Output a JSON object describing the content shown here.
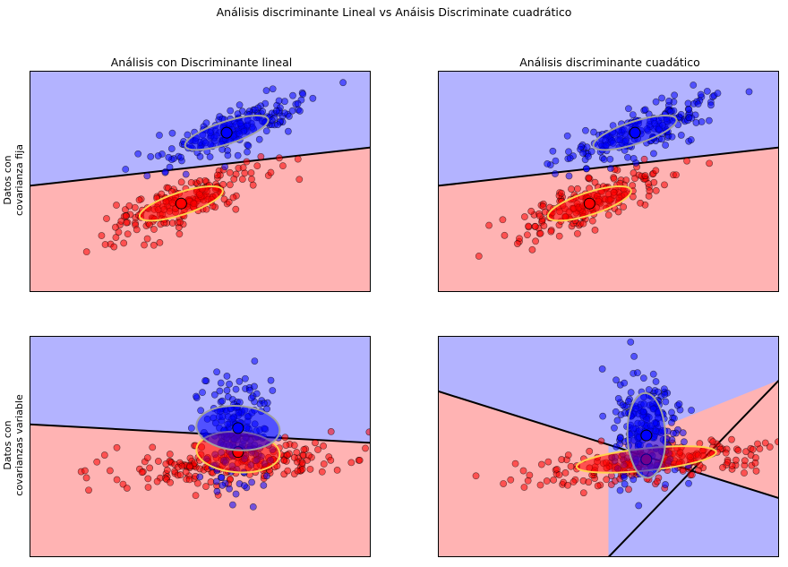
{
  "figure": {
    "suptitle": "Análisis discriminante Lineal vs Anáisis Discriminate cuadrático",
    "col_titles": [
      "Análisis con Discriminante lineal",
      "Análisis discriminante cuadático"
    ],
    "row_labels": [
      {
        "line1": "Datos con",
        "line2": "covarianza fija"
      },
      {
        "line1": "Datos con",
        "line2": "covarianzas variable"
      }
    ]
  },
  "chart_data": [
    {
      "type": "scatter",
      "title": "Análisis con Discriminante lineal",
      "row_label": "Datos con covarianza fija",
      "classifier": "LDA",
      "xlim": [
        -4,
        5
      ],
      "ylim": [
        -3,
        4.5
      ],
      "grid": false,
      "classes": [
        {
          "name": "0",
          "color": "#ff0000",
          "mean": [
            0,
            0
          ],
          "cov": [
            [
              1,
              0.45
            ],
            [
              0.45,
              0.35
            ]
          ],
          "n": 200
        },
        {
          "name": "1",
          "color": "#0000ff",
          "mean": [
            1.2,
            2.4
          ],
          "cov": [
            [
              1,
              0.45
            ],
            [
              0.45,
              0.35
            ]
          ],
          "n": 200
        }
      ],
      "boundary": {
        "kind": "line",
        "points": [
          [
            -4,
            0.6
          ],
          [
            5,
            1.9
          ]
        ]
      },
      "ellipses": [
        {
          "class": "0",
          "center": [
            0,
            0
          ],
          "rx": 1.15,
          "ry": 0.38,
          "angle_deg": 18,
          "fill": "#ff0000",
          "edge": "#ffd24d"
        },
        {
          "class": "1",
          "center": [
            1.2,
            2.4
          ],
          "rx": 1.15,
          "ry": 0.38,
          "angle_deg": 18,
          "fill": "#0000ff",
          "edge": "#a0a0a0"
        }
      ]
    },
    {
      "type": "scatter",
      "title": "Análisis discriminante cuadático",
      "row_label": "Datos con covarianza fija",
      "classifier": "QDA",
      "xlim": [
        -4,
        5
      ],
      "ylim": [
        -3,
        4.5
      ],
      "grid": false,
      "classes": [
        {
          "name": "0",
          "color": "#ff0000",
          "mean": [
            0,
            0
          ],
          "cov": [
            [
              1,
              0.45
            ],
            [
              0.45,
              0.35
            ]
          ],
          "n": 200
        },
        {
          "name": "1",
          "color": "#0000ff",
          "mean": [
            1.2,
            2.4
          ],
          "cov": [
            [
              1,
              0.45
            ],
            [
              0.45,
              0.35
            ]
          ],
          "n": 200
        }
      ],
      "boundary": {
        "kind": "line",
        "points": [
          [
            -4,
            0.6
          ],
          [
            5,
            1.9
          ]
        ]
      },
      "ellipses": [
        {
          "class": "0",
          "center": [
            0,
            0
          ],
          "rx": 1.15,
          "ry": 0.38,
          "angle_deg": 18,
          "fill": "#ff0000",
          "edge": "#ffd24d"
        },
        {
          "class": "1",
          "center": [
            1.2,
            2.4
          ],
          "rx": 1.15,
          "ry": 0.38,
          "angle_deg": 18,
          "fill": "#0000ff",
          "edge": "#a0a0a0"
        }
      ]
    },
    {
      "type": "scatter",
      "title": "",
      "row_label": "Datos con covarianzas variable",
      "classifier": "LDA",
      "xlim": [
        -5.5,
        3.5
      ],
      "ylim": [
        -2.5,
        3.5
      ],
      "grid": false,
      "classes": [
        {
          "name": "0",
          "color": "#ff0000",
          "mean": [
            0,
            0
          ],
          "cov": [
            [
              3.2,
              0.3
            ],
            [
              0.3,
              0.1
            ]
          ],
          "n": 200
        },
        {
          "name": "1",
          "color": "#0000ff",
          "mean": [
            0,
            1
          ],
          "cov": [
            [
              0.25,
              0
            ],
            [
              0,
              0.6
            ]
          ],
          "n": 200
        }
      ],
      "boundary": {
        "kind": "line",
        "points": [
          [
            -5.5,
            1.1
          ],
          [
            3.5,
            0.6
          ]
        ]
      },
      "ellipses": [
        {
          "class": "0",
          "center": [
            0,
            0.35
          ],
          "rx": 1.1,
          "ry": 0.55,
          "angle_deg": -4,
          "fill": "#ff0000",
          "edge": "#ffd24d"
        },
        {
          "class": "1",
          "center": [
            0,
            1.0
          ],
          "rx": 1.1,
          "ry": 0.6,
          "angle_deg": -4,
          "fill": "#0000ff",
          "edge": "#a0a0a0"
        }
      ]
    },
    {
      "type": "scatter",
      "title": "",
      "row_label": "Datos con covarianzas variable",
      "classifier": "QDA",
      "xlim": [
        -5.5,
        3.5
      ],
      "ylim": [
        -2.5,
        3.5
      ],
      "grid": false,
      "classes": [
        {
          "name": "0",
          "color": "#ff0000",
          "mean": [
            0,
            0
          ],
          "cov": [
            [
              3.2,
              0.3
            ],
            [
              0.3,
              0.1
            ]
          ],
          "n": 200
        },
        {
          "name": "1",
          "color": "#0000ff",
          "mean": [
            0,
            1
          ],
          "cov": [
            [
              0.25,
              0
            ],
            [
              0,
              0.6
            ]
          ],
          "n": 200
        }
      ],
      "boundary": {
        "kind": "x",
        "lines": [
          [
            [
              -5.5,
              2.0
            ],
            [
              3.5,
              -0.9
            ]
          ],
          [
            [
              -1.0,
              -2.5
            ],
            [
              3.5,
              2.3
            ]
          ]
        ]
      },
      "ellipses": [
        {
          "class": "0",
          "center": [
            0,
            0.15
          ],
          "rx": 1.85,
          "ry": 0.3,
          "angle_deg": 6,
          "fill": "#ff0000",
          "edge": "#ffd24d"
        },
        {
          "class": "1",
          "center": [
            0,
            0.8
          ],
          "rx": 0.5,
          "ry": 1.15,
          "angle_deg": 2,
          "fill": "#0000ff",
          "edge": "#a0a0a0"
        }
      ]
    }
  ]
}
